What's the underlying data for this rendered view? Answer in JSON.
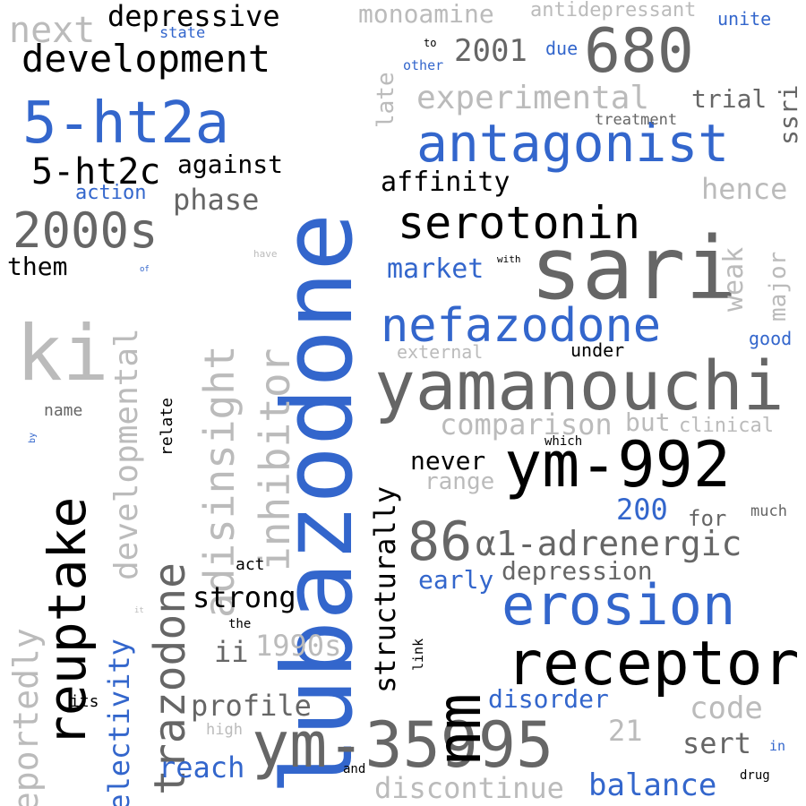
{
  "palette": {
    "blue": "#3366cc",
    "black": "#000000",
    "dark_gray": "#555555",
    "gray": "#666666",
    "light_gray": "#bbbbbb",
    "background": "#ffffff"
  },
  "words": [
    {
      "text": "lubazodone",
      "orientation": "vertical",
      "color": "blue",
      "emphasis": 1.0
    },
    {
      "text": "sari",
      "orientation": "horizontal",
      "color": "gray",
      "emphasis": 0.87
    },
    {
      "text": "yamanouchi",
      "orientation": "horizontal",
      "color": "gray",
      "emphasis": 0.69
    },
    {
      "text": "ym-992",
      "orientation": "horizontal",
      "color": "black",
      "emphasis": 0.64
    },
    {
      "text": "ym-35995",
      "orientation": "horizontal",
      "color": "gray",
      "emphasis": 0.64
    },
    {
      "text": "receptor",
      "orientation": "horizontal",
      "color": "black",
      "emphasis": 0.62
    },
    {
      "text": "680",
      "orientation": "horizontal",
      "color": "gray",
      "emphasis": 0.62
    },
    {
      "text": "nm",
      "orientation": "vertical",
      "color": "black",
      "emphasis": 0.62
    },
    {
      "text": "ki",
      "orientation": "horizontal",
      "color": "light_gray",
      "emphasis": 0.6
    },
    {
      "text": "erosion",
      "orientation": "horizontal",
      "color": "blue",
      "emphasis": 0.56
    },
    {
      "text": "antagonist",
      "orientation": "horizontal",
      "color": "blue",
      "emphasis": 0.53
    },
    {
      "text": "86",
      "orientation": "horizontal",
      "color": "gray",
      "emphasis": 0.53
    },
    {
      "text": "reuptake",
      "orientation": "vertical",
      "color": "black",
      "emphasis": 0.52
    },
    {
      "text": "5-ht2a",
      "orientation": "horizontal",
      "color": "blue",
      "emphasis": 0.5
    },
    {
      "text": "trazodone",
      "orientation": "vertical",
      "color": "gray",
      "emphasis": 0.48
    },
    {
      "text": "adisinsight",
      "orientation": "vertical",
      "color": "light_gray",
      "emphasis": 0.47
    },
    {
      "text": "inhibitor",
      "orientation": "vertical",
      "color": "light_gray",
      "emphasis": 0.46
    },
    {
      "text": "nefazodone",
      "orientation": "horizontal",
      "color": "blue",
      "emphasis": 0.44
    },
    {
      "text": "serotonin",
      "orientation": "horizontal",
      "color": "black",
      "emphasis": 0.43
    },
    {
      "text": "2000s",
      "orientation": "horizontal",
      "color": "gray",
      "emphasis": 0.42
    },
    {
      "text": "α1-adrenergic",
      "orientation": "horizontal",
      "color": "gray",
      "emphasis": 0.36
    },
    {
      "text": "development",
      "orientation": "horizontal",
      "color": "black",
      "emphasis": 0.36
    },
    {
      "text": "reportedly",
      "orientation": "vertical",
      "color": "light_gray",
      "emphasis": 0.33
    },
    {
      "text": "developmental",
      "orientation": "vertical",
      "color": "light_gray",
      "emphasis": 0.32
    },
    {
      "text": "selectivity",
      "orientation": "vertical",
      "color": "blue",
      "emphasis": 0.31
    },
    {
      "text": "structurally",
      "orientation": "vertical",
      "color": "black",
      "emphasis": 0.3
    },
    {
      "text": "next",
      "orientation": "horizontal",
      "color": "light_gray",
      "emphasis": 0.3
    },
    {
      "text": "depressive",
      "orientation": "horizontal",
      "color": "black",
      "emphasis": 0.29
    },
    {
      "text": "5-ht2c",
      "orientation": "horizontal",
      "color": "black",
      "emphasis": 0.29
    },
    {
      "text": "experimental",
      "orientation": "horizontal",
      "color": "light_gray",
      "emphasis": 0.29
    },
    {
      "text": "1990s",
      "orientation": "horizontal",
      "color": "light_gray",
      "emphasis": 0.28
    },
    {
      "text": "strong",
      "orientation": "horizontal",
      "color": "black",
      "emphasis": 0.27
    },
    {
      "text": "balance",
      "orientation": "horizontal",
      "color": "blue",
      "emphasis": 0.27
    },
    {
      "text": "discontinue",
      "orientation": "horizontal",
      "color": "light_gray",
      "emphasis": 0.26
    },
    {
      "text": "comparison",
      "orientation": "horizontal",
      "color": "light_gray",
      "emphasis": 0.26
    },
    {
      "text": "phase",
      "orientation": "horizontal",
      "color": "gray",
      "emphasis": 0.25
    },
    {
      "text": "profile",
      "orientation": "horizontal",
      "color": "gray",
      "emphasis": 0.25
    },
    {
      "text": "reach",
      "orientation": "horizontal",
      "color": "blue",
      "emphasis": 0.25
    },
    {
      "text": "sert",
      "orientation": "horizontal",
      "color": "gray",
      "emphasis": 0.25
    },
    {
      "text": "2001",
      "orientation": "horizontal",
      "color": "gray",
      "emphasis": 0.25
    },
    {
      "text": "hence",
      "orientation": "horizontal",
      "color": "light_gray",
      "emphasis": 0.25
    },
    {
      "text": "code",
      "orientation": "horizontal",
      "color": "light_gray",
      "emphasis": 0.25
    },
    {
      "text": "market",
      "orientation": "horizontal",
      "color": "blue",
      "emphasis": 0.24
    },
    {
      "text": "affinity",
      "orientation": "horizontal",
      "color": "black",
      "emphasis": 0.24
    },
    {
      "text": "monoamine",
      "orientation": "horizontal",
      "color": "light_gray",
      "emphasis": 0.24
    },
    {
      "text": "ssri",
      "orientation": "vertical",
      "color": "gray",
      "emphasis": 0.24
    },
    {
      "text": "weak",
      "orientation": "vertical",
      "color": "light_gray",
      "emphasis": 0.23
    },
    {
      "text": "depression",
      "orientation": "horizontal",
      "color": "gray",
      "emphasis": 0.23
    },
    {
      "text": "disorder",
      "orientation": "horizontal",
      "color": "blue",
      "emphasis": 0.23
    },
    {
      "text": "against",
      "orientation": "horizontal",
      "color": "black",
      "emphasis": 0.22
    },
    {
      "text": "never",
      "orientation": "horizontal",
      "color": "black",
      "emphasis": 0.22
    },
    {
      "text": "trial",
      "orientation": "horizontal",
      "color": "gray",
      "emphasis": 0.22
    },
    {
      "text": "them",
      "orientation": "horizontal",
      "color": "black",
      "emphasis": 0.22
    },
    {
      "text": "200",
      "orientation": "horizontal",
      "color": "blue",
      "emphasis": 0.22
    },
    {
      "text": "ii",
      "orientation": "horizontal",
      "color": "gray",
      "emphasis": 0.22
    },
    {
      "text": "early",
      "orientation": "horizontal",
      "color": "blue",
      "emphasis": 0.21
    },
    {
      "text": "range",
      "orientation": "horizontal",
      "color": "light_gray",
      "emphasis": 0.21
    },
    {
      "text": "but",
      "orientation": "horizontal",
      "color": "light_gray",
      "emphasis": 0.21
    },
    {
      "text": "21",
      "orientation": "horizontal",
      "color": "light_gray",
      "emphasis": 0.21
    },
    {
      "text": "major",
      "orientation": "vertical",
      "color": "light_gray",
      "emphasis": 0.2
    },
    {
      "text": "late",
      "orientation": "vertical",
      "color": "light_gray",
      "emphasis": 0.2
    },
    {
      "text": "for",
      "orientation": "horizontal",
      "color": "gray",
      "emphasis": 0.17
    },
    {
      "text": "antidepressant",
      "orientation": "horizontal",
      "color": "light_gray",
      "emphasis": 0.17
    },
    {
      "text": "action",
      "orientation": "horizontal",
      "color": "blue",
      "emphasis": 0.16
    },
    {
      "text": "clinical",
      "orientation": "horizontal",
      "color": "light_gray",
      "emphasis": 0.16
    },
    {
      "text": "external",
      "orientation": "horizontal",
      "color": "light_gray",
      "emphasis": 0.16
    },
    {
      "text": "under",
      "orientation": "horizontal",
      "color": "black",
      "emphasis": 0.15
    },
    {
      "text": "good",
      "orientation": "horizontal",
      "color": "blue",
      "emphasis": 0.15
    },
    {
      "text": "unite",
      "orientation": "horizontal",
      "color": "blue",
      "emphasis": 0.15
    },
    {
      "text": "due",
      "orientation": "horizontal",
      "color": "blue",
      "emphasis": 0.15
    },
    {
      "text": "name",
      "orientation": "horizontal",
      "color": "gray",
      "emphasis": 0.14
    },
    {
      "text": "act",
      "orientation": "horizontal",
      "color": "black",
      "emphasis": 0.14
    },
    {
      "text": "relate",
      "orientation": "vertical",
      "color": "black",
      "emphasis": 0.14
    },
    {
      "text": "its",
      "orientation": "horizontal",
      "color": "black",
      "emphasis": 0.14
    },
    {
      "text": "treatment",
      "orientation": "horizontal",
      "color": "gray",
      "emphasis": 0.14
    },
    {
      "text": "much",
      "orientation": "horizontal",
      "color": "gray",
      "emphasis": 0.14
    },
    {
      "text": "high",
      "orientation": "horizontal",
      "color": "light_gray",
      "emphasis": 0.14
    },
    {
      "text": "state",
      "orientation": "horizontal",
      "color": "blue",
      "emphasis": 0.14
    },
    {
      "text": "link",
      "orientation": "vertical",
      "color": "black",
      "emphasis": 0.12
    },
    {
      "text": "other",
      "orientation": "horizontal",
      "color": "blue",
      "emphasis": 0.12
    },
    {
      "text": "in",
      "orientation": "horizontal",
      "color": "blue",
      "emphasis": 0.12
    },
    {
      "text": "which",
      "orientation": "horizontal",
      "color": "black",
      "emphasis": 0.11
    },
    {
      "text": "the",
      "orientation": "horizontal",
      "color": "black",
      "emphasis": 0.11
    },
    {
      "text": "and",
      "orientation": "horizontal",
      "color": "black",
      "emphasis": 0.11
    },
    {
      "text": "drug",
      "orientation": "horizontal",
      "color": "black",
      "emphasis": 0.11
    },
    {
      "text": "with",
      "orientation": "horizontal",
      "color": "black",
      "emphasis": 0.09
    },
    {
      "text": "to",
      "orientation": "horizontal",
      "color": "black",
      "emphasis": 0.09
    },
    {
      "text": "have",
      "orientation": "horizontal",
      "color": "light_gray",
      "emphasis": 0.08
    },
    {
      "text": "it",
      "orientation": "horizontal",
      "color": "light_gray",
      "emphasis": 0.07
    },
    {
      "text": "by",
      "orientation": "vertical",
      "color": "blue",
      "emphasis": 0.07
    },
    {
      "text": "of",
      "orientation": "horizontal",
      "color": "blue",
      "emphasis": 0.07
    }
  ]
}
